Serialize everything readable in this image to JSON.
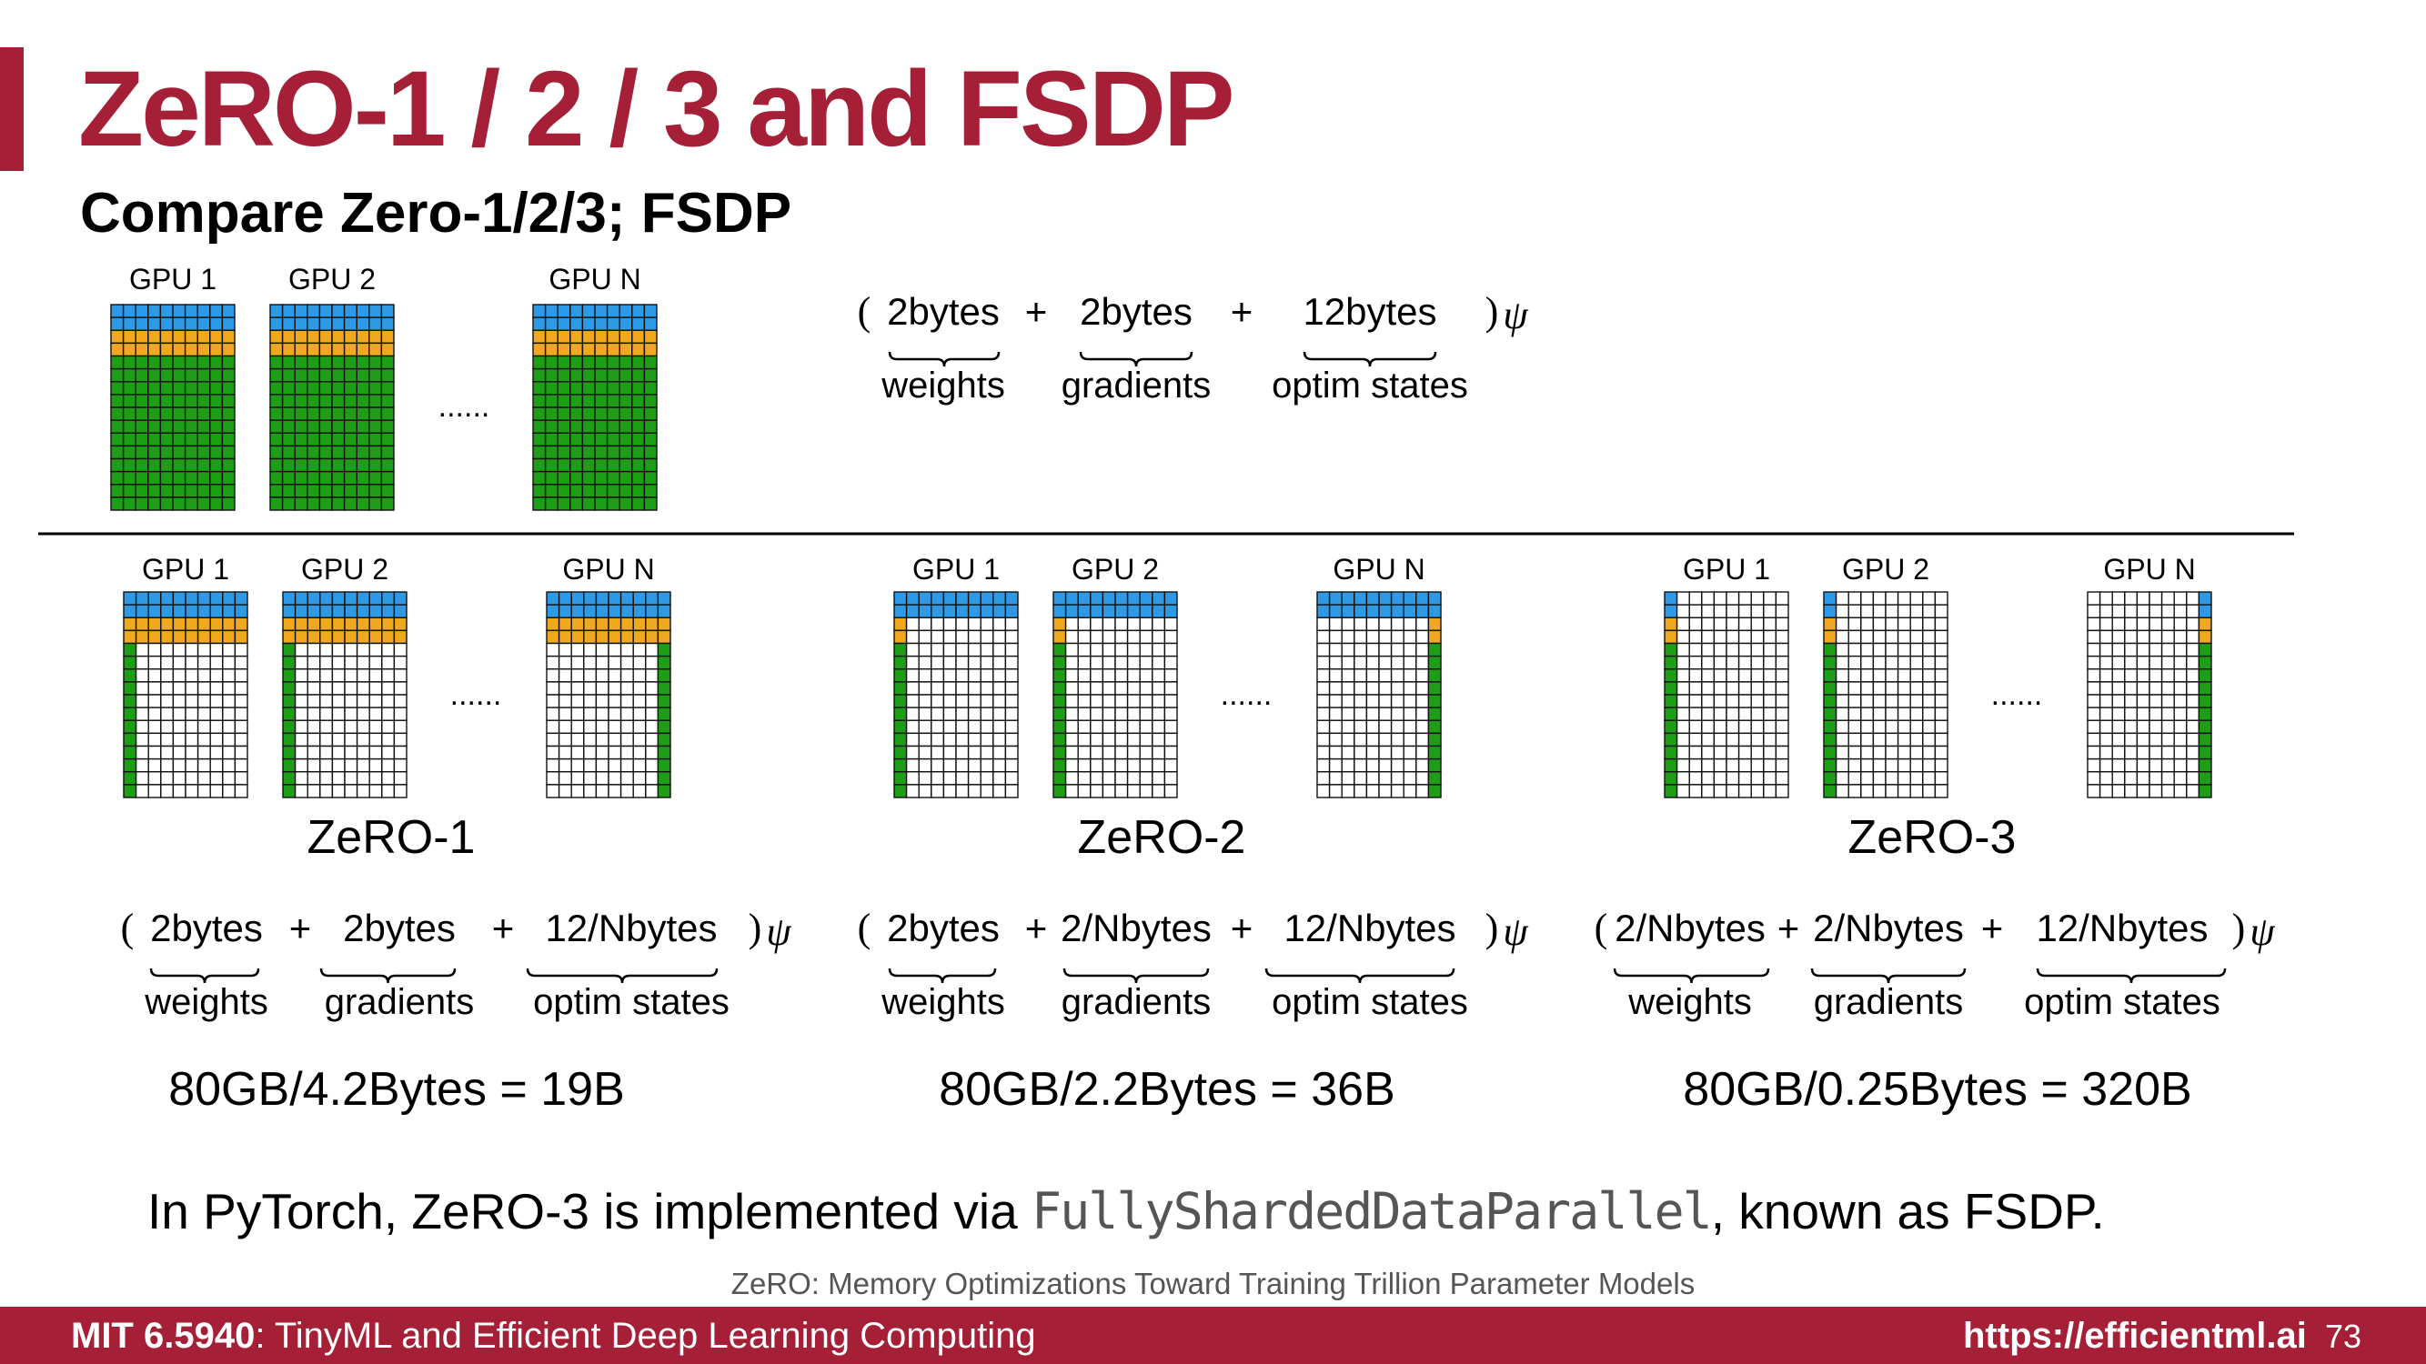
{
  "title": "ZeRO-1 / 2 / 3 and FSDP",
  "subtitle": "Compare Zero-1/2/3; FSDP",
  "colors": {
    "weights": "#2e9ae6",
    "gradients": "#f0a81e",
    "optim_states": "#1e9e17",
    "brand": "#a51f37"
  },
  "ellipsis": "......",
  "baseline": {
    "gpus": [
      "GPU 1",
      "GPU 2",
      "GPU N"
    ],
    "formula": {
      "open": "(",
      "terms": [
        "2bytes",
        "2bytes",
        "12bytes"
      ],
      "ops": [
        "+",
        "+"
      ],
      "close": ")",
      "psi": "ψ"
    },
    "labels": [
      "weights",
      "gradients",
      "optim states"
    ]
  },
  "stages": [
    {
      "name": "ZeRO-1",
      "gpus": [
        "GPU 1",
        "GPU 2",
        "GPU N"
      ],
      "formula": {
        "open": "(",
        "terms": [
          "2bytes",
          "2bytes",
          "12/Nbytes"
        ],
        "ops": [
          "+",
          "+"
        ],
        "close": ")",
        "psi": "ψ"
      },
      "labels": [
        "weights",
        "gradients",
        "optim states"
      ],
      "capacity": {
        "lhs": "80GB/4.2Bytes",
        "eq": "=",
        "rhs": "19B"
      }
    },
    {
      "name": "ZeRO-2",
      "gpus": [
        "GPU 1",
        "GPU 2",
        "GPU N"
      ],
      "formula": {
        "open": "(",
        "terms": [
          "2bytes",
          "2/Nbytes",
          "12/Nbytes"
        ],
        "ops": [
          "+",
          "+"
        ],
        "close": ")",
        "psi": "ψ"
      },
      "labels": [
        "weights",
        "gradients",
        "optim states"
      ],
      "capacity": {
        "lhs": "80GB/2.2Bytes",
        "eq": "=",
        "rhs": "36B"
      }
    },
    {
      "name": "ZeRO-3",
      "gpus": [
        "GPU 1",
        "GPU 2",
        "GPU N"
      ],
      "formula": {
        "open": "(",
        "terms": [
          "2/Nbytes",
          "2/Nbytes",
          "12/Nbytes"
        ],
        "ops": [
          "+",
          "+"
        ],
        "close": ")",
        "psi": "ψ"
      },
      "labels": [
        "weights",
        "gradients",
        "optim states"
      ],
      "capacity": {
        "lhs": "80GB/0.25Bytes",
        "eq": "=",
        "rhs": "320B"
      }
    }
  ],
  "fsdp_note": {
    "before": "In PyTorch, ZeRO-3 is implemented via ",
    "code": "FullyShardedDataParallel",
    "after": ", known as FSDP."
  },
  "citation": "ZeRO: Memory Optimizations Toward Training Trillion Parameter Models",
  "footer": {
    "course_code": "MIT 6.5940",
    "course_name": ": TinyML and Efficient Deep Learning Computing",
    "url": "https://efficientml.ai",
    "page": "73"
  }
}
